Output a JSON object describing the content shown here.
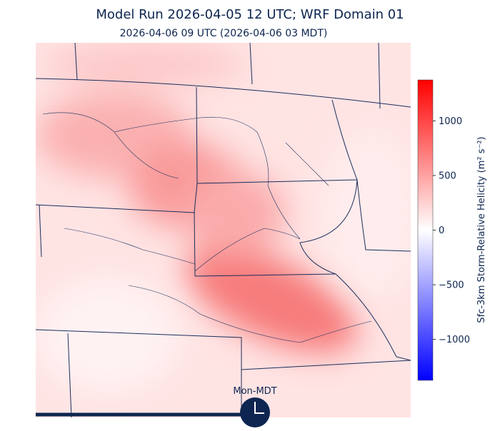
{
  "header": {
    "title": "Model Run 2026-04-05 12 UTC; WRF Domain 01",
    "subtitle": "2026-04-06 09 UTC  (2026-04-06 03 MDT)"
  },
  "colorbar": {
    "label": "Sfc-3km Storm-Relative Helicity (m² s⁻²)",
    "lim": [
      -1375,
      1375
    ],
    "ticks": [
      1000,
      500,
      0,
      {
        "value": -500,
        "label": "−500"
      },
      {
        "value": -1000,
        "label": "−1000"
      }
    ]
  },
  "clock": {
    "label": "Mon-MDT"
  }
}
